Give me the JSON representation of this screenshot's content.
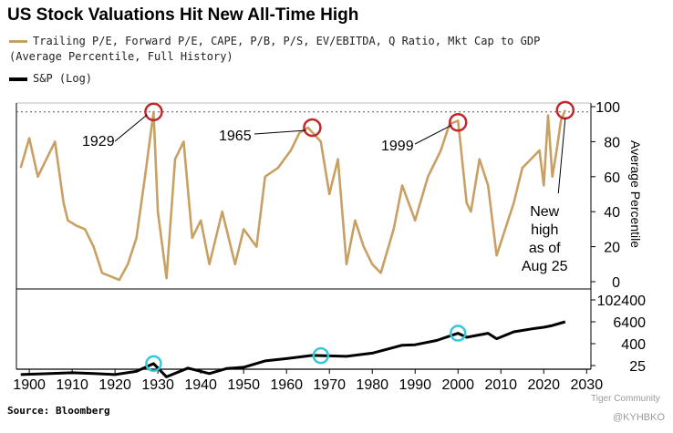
{
  "title": "US Stock Valuations Hit New All-Time High",
  "legend": {
    "valuation_line1": "Trailing P/E, Forward P/E, CAPE, P/B, P/S, EV/EBITDA, Q Ratio, Mkt Cap to GDP",
    "valuation_line2": "(Average Percentile, Full History)",
    "sp": "S&P (Log)"
  },
  "source": "Source: Bloomberg",
  "watermarks": [
    "Tiger Community",
    "@KYHBKO"
  ],
  "colors": {
    "valuation": "#c8a064",
    "sp": "#000000",
    "highlight_red": "#c0282c",
    "highlight_cyan": "#33c9d9"
  },
  "chart_data": {
    "type": "line",
    "x_ticks": [
      1900,
      1910,
      1920,
      1930,
      1940,
      1950,
      1960,
      1970,
      1980,
      1990,
      2000,
      2010,
      2020,
      2030
    ],
    "xlim": [
      1897,
      2031
    ],
    "top_panel": {
      "series": [
        {
          "name": "Trailing P/E, Forward P/E, CAPE, P/B, P/S, EV/EBITDA, Q Ratio, Mkt Cap to GDP (Average Percentile, Full History)",
          "x": [
            1898,
            1900,
            1902,
            1904,
            1906,
            1908,
            1909,
            1911,
            1913,
            1915,
            1917,
            1919,
            1921,
            1923,
            1925,
            1927,
            1929,
            1930,
            1932,
            1934,
            1936,
            1938,
            1940,
            1942,
            1945,
            1948,
            1950,
            1953,
            1955,
            1958,
            1961,
            1963,
            1965,
            1968,
            1970,
            1972,
            1974,
            1976,
            1978,
            1980,
            1982,
            1985,
            1987,
            1990,
            1993,
            1996,
            1998,
            2000,
            2002,
            2003,
            2005,
            2007,
            2009,
            2011,
            2013,
            2015,
            2017,
            2019,
            2020,
            2021,
            2022,
            2023,
            2024,
            2025
          ],
          "values": [
            65,
            82,
            60,
            70,
            80,
            45,
            35,
            32,
            30,
            20,
            5,
            3,
            1,
            10,
            25,
            60,
            97,
            40,
            2,
            70,
            80,
            25,
            35,
            10,
            40,
            10,
            30,
            20,
            60,
            65,
            75,
            85,
            88,
            80,
            50,
            70,
            10,
            35,
            20,
            10,
            5,
            30,
            55,
            35,
            60,
            75,
            90,
            92,
            45,
            40,
            70,
            55,
            15,
            30,
            45,
            65,
            70,
            75,
            55,
            95,
            60,
            75,
            92,
            98
          ]
        }
      ],
      "y_ticks": [
        0,
        20,
        40,
        60,
        80,
        100
      ],
      "ylim": [
        0,
        100
      ],
      "ylabel": "Average Percentile",
      "reference_line": 97,
      "annotations": [
        {
          "label": "1929",
          "x": 1929,
          "y": 97
        },
        {
          "label": "1965",
          "x": 1966,
          "y": 88
        },
        {
          "label": "1999",
          "x": 2000,
          "y": 91
        },
        {
          "label_lines": [
            "New",
            "high",
            "as of",
            "Aug 25"
          ],
          "x": 2025,
          "y": 98
        }
      ]
    },
    "bottom_panel": {
      "series": [
        {
          "name": "S&P (Log)",
          "x": [
            1898,
            1905,
            1910,
            1915,
            1920,
            1925,
            1929,
            1932,
            1937,
            1942,
            1946,
            1950,
            1955,
            1960,
            1966,
            1970,
            1974,
            1980,
            1987,
            1990,
            1995,
            2000,
            2002,
            2007,
            2009,
            2013,
            2018,
            2020,
            2022,
            2025
          ],
          "values": [
            8,
            9,
            10,
            9,
            8,
            12,
            32,
            6,
            18,
            9,
            17,
            20,
            45,
            60,
            90,
            85,
            80,
            120,
            330,
            350,
            600,
            1500,
            900,
            1500,
            750,
            1800,
            2800,
            3200,
            4000,
            6400
          ]
        }
      ],
      "y_ticks": [
        25,
        400,
        6400,
        102400
      ],
      "y_tick_labels": [
        "25",
        "400",
        "6400",
        "102400"
      ],
      "scale": "log",
      "highlights": [
        1929,
        1968,
        2000
      ]
    }
  }
}
